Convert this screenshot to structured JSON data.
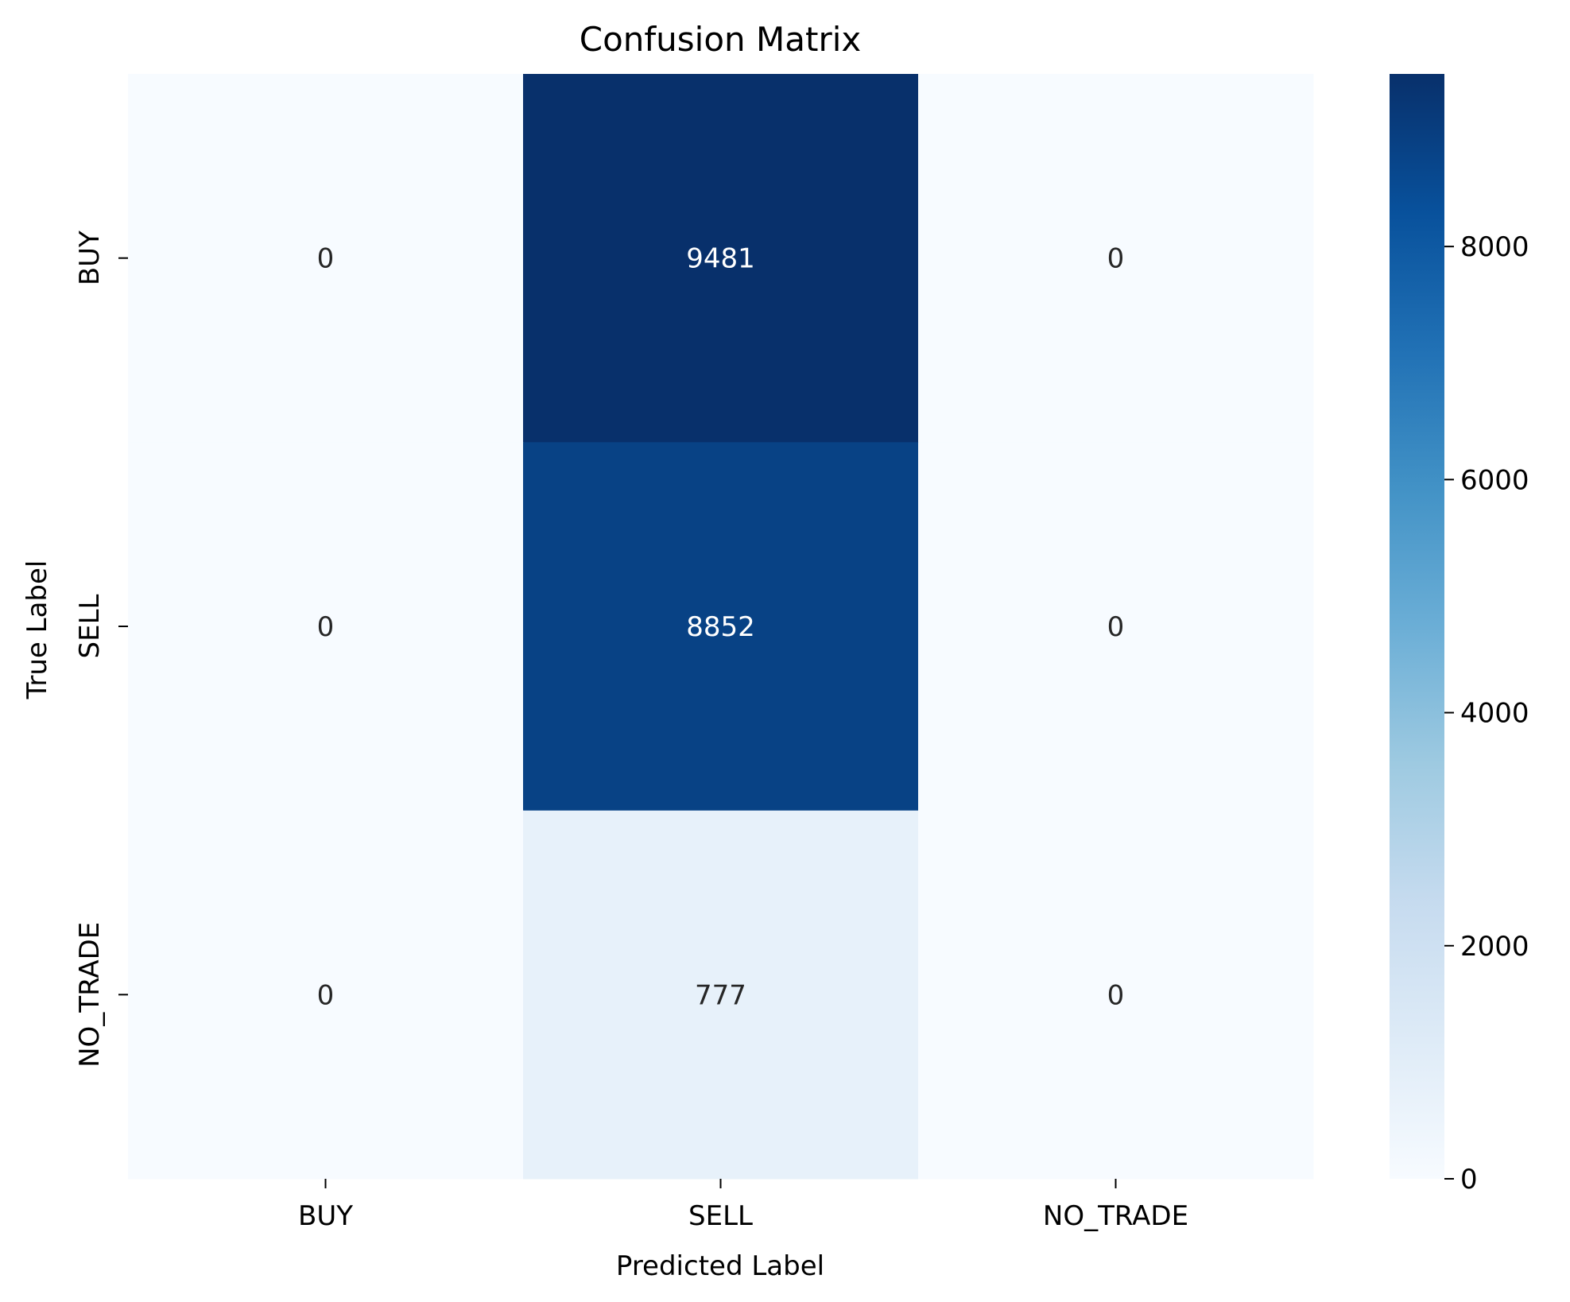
{
  "chart_data": {
    "type": "heatmap",
    "title": "Confusion Matrix",
    "xlabel": "Predicted Label",
    "ylabel": "True Label",
    "x_categories": [
      "BUY",
      "SELL",
      "NO_TRADE"
    ],
    "y_categories": [
      "BUY",
      "SELL",
      "NO_TRADE"
    ],
    "values": [
      [
        0,
        9481,
        0
      ],
      [
        0,
        8852,
        0
      ],
      [
        0,
        777,
        0
      ]
    ],
    "colormap": "Blues",
    "colorbar": {
      "range": [
        0,
        9481
      ],
      "ticks": [
        0,
        2000,
        4000,
        6000,
        8000
      ]
    },
    "grid": false,
    "legend": "none"
  }
}
